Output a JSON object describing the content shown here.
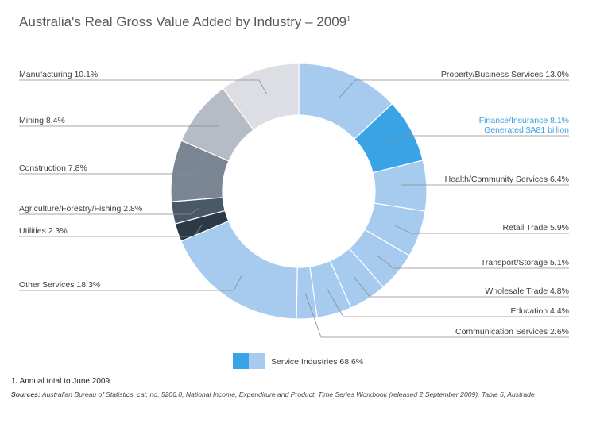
{
  "title": {
    "text": "Australia's Real Gross Value Added by Industry – 2009",
    "sup": "1"
  },
  "chart_data": {
    "type": "pie",
    "variant": "donut",
    "title": "Australia's Real Gross Value Added by Industry – 2009",
    "unit": "%",
    "slices": [
      {
        "name": "Property/Business Services",
        "label": "Property/Business Services 13.0%",
        "value": 13.0,
        "color": "#a6cbee",
        "service": true
      },
      {
        "name": "Finance/Insurance",
        "label": "Finance/Insurance 8.1%",
        "sublabel": "Generated $A81 billion",
        "value": 8.1,
        "color": "#3aa3e5",
        "service": true,
        "highlight": true
      },
      {
        "name": "Health/Community Services",
        "label": "Health/Community Services  6.4%",
        "value": 6.4,
        "color": "#a6cbee",
        "service": true
      },
      {
        "name": "Retail Trade",
        "label": "Retail Trade 5.9%",
        "value": 5.9,
        "color": "#a6cbee",
        "service": true
      },
      {
        "name": "Transport/Storage",
        "label": "Transport/Storage 5.1%",
        "value": 5.1,
        "color": "#a6cbee",
        "service": true
      },
      {
        "name": "Wholesale Trade",
        "label": "Wholesale Trade 4.8%",
        "value": 4.8,
        "color": "#a6cbee",
        "service": true
      },
      {
        "name": "Education",
        "label": "Education 4.4%",
        "value": 4.4,
        "color": "#a6cbee",
        "service": true
      },
      {
        "name": "Communication Services",
        "label": "Communication Services 2.6%",
        "value": 2.6,
        "color": "#a6cbee",
        "service": true
      },
      {
        "name": "Other Services",
        "label": "Other Services 18.3%",
        "value": 18.3,
        "color": "#a6cbee",
        "service": true
      },
      {
        "name": "Utilities",
        "label": "Utilities 2.3%",
        "value": 2.3,
        "color": "#2c3a48",
        "service": false
      },
      {
        "name": "Agriculture/Forestry/Fishing",
        "label": "Agriculture/Forestry/Fishing 2.8%",
        "value": 2.8,
        "color": "#4a5968",
        "service": false
      },
      {
        "name": "Construction",
        "label": "Construction 7.8%",
        "value": 7.8,
        "color": "#7b8694",
        "service": false
      },
      {
        "name": "Mining",
        "label": "Mining 8.4%",
        "value": 8.4,
        "color": "#b5bcc6",
        "service": false
      },
      {
        "name": "Manufacturing",
        "label": "Manufacturing 10.1%",
        "value": 10.1,
        "color": "#dcdee3",
        "service": false
      }
    ],
    "legend": {
      "label": "Service Industries 68.6%",
      "colors": [
        "#3aa3e5",
        "#a6cbee"
      ]
    }
  },
  "footnote": {
    "number": "1.",
    "text": "Annual total to June 2009."
  },
  "sources": {
    "label": "Sources:",
    "text": "Australian Bureau of Statistics, cat. no. 5206.0, National Income, Expenditure and Product, Time Series Workbook (released 2 September 2009), Table 6; Austrade"
  }
}
